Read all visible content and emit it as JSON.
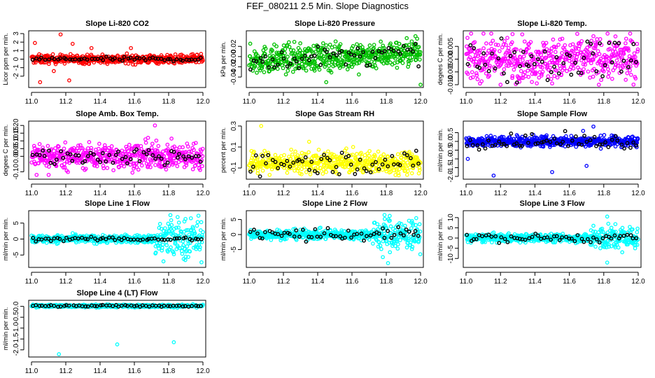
{
  "title": "FEF_080211  2.5 Min. Slope Diagnostics",
  "chart_data": [
    {
      "type": "scatter",
      "title": "Slope Li-820 CO2",
      "ylabel": "Licor ppm per min.",
      "color": "#ff0000",
      "xlim": [
        11.0,
        12.0
      ],
      "xticks": [
        11.0,
        11.2,
        11.4,
        11.6,
        11.8,
        12.0
      ],
      "xtick_labels": [
        "11.0",
        "11.2",
        "11.4",
        "11.6",
        "11.8",
        "12.0"
      ],
      "ylim": [
        -3.0,
        3.0
      ],
      "yticks": [
        -2,
        -1,
        0,
        1,
        2,
        3
      ],
      "ytick_labels": [
        "-2",
        "-1",
        "0",
        "1",
        "2",
        "3"
      ],
      "base": 0.0,
      "spread": 0.25,
      "black_spread": 0.12,
      "outliers": [
        [
          11.17,
          2.9
        ],
        [
          11.05,
          -2.7
        ],
        [
          11.22,
          -2.5
        ],
        [
          11.24,
          1.8
        ],
        [
          11.02,
          1.9
        ],
        [
          11.58,
          1.3
        ],
        [
          11.13,
          -1.4
        ],
        [
          11.35,
          1.3
        ]
      ]
    },
    {
      "type": "scatter",
      "title": "Slope Li-820 Pressure",
      "ylabel": "kPa per min.",
      "color": "#00c000",
      "xlim": [
        11.0,
        12.0
      ],
      "xticks": [
        11.0,
        11.2,
        11.4,
        11.6,
        11.8,
        12.0
      ],
      "xtick_labels": [
        "11.0",
        "11.2",
        "11.4",
        "11.6",
        "11.8",
        "12.0"
      ],
      "ylim": [
        -0.055,
        0.045
      ],
      "yticks": [
        -0.04,
        -0.02,
        0.0,
        0.02
      ],
      "ytick_labels": [
        "-0.04",
        "-0.02",
        "0.00",
        "0.02"
      ],
      "base": 0.0,
      "spread": 0.013,
      "trend": 0.015,
      "black_spread": 0.01,
      "outliers": [
        [
          11.45,
          -0.05
        ],
        [
          12.0,
          -0.055
        ],
        [
          11.64,
          -0.035
        ],
        [
          11.97,
          0.04
        ],
        [
          11.98,
          0.035
        ]
      ]
    },
    {
      "type": "scatter",
      "title": "Slope Li-820 Temp.",
      "ylabel": "degees C per min.",
      "color": "#ff00ff",
      "xlim": [
        11.0,
        12.0
      ],
      "xticks": [
        11.0,
        11.2,
        11.4,
        11.6,
        11.8,
        12.0
      ],
      "xtick_labels": [
        "11.0",
        "11.2",
        "11.4",
        "11.6",
        "11.8",
        "12.0"
      ],
      "ylim": [
        -0.01,
        0.01
      ],
      "yticks": [
        -0.01,
        -0.005,
        0.0,
        0.005
      ],
      "ytick_labels": [
        "-0.010",
        "-0.005",
        "0.000",
        "0.005"
      ],
      "base": 0.0,
      "spread": 0.004,
      "black_spread": 0.004,
      "outliers": [
        [
          11.27,
          0.0098
        ],
        [
          11.5,
          -0.0095
        ],
        [
          11.74,
          0.009
        ],
        [
          11.93,
          0.008
        ]
      ]
    },
    {
      "type": "scatter",
      "title": "Slope Amb. Box Temp.",
      "ylabel": "degees C per min.",
      "color": "#ff00ff",
      "xlim": [
        11.0,
        12.0
      ],
      "xticks": [
        11.0,
        11.2,
        11.4,
        11.6,
        11.8,
        12.0
      ],
      "xtick_labels": [
        "11.0",
        "11.2",
        "11.4",
        "11.6",
        "11.8",
        "12.0"
      ],
      "ylim": [
        -0.13,
        0.21
      ],
      "yticks": [
        -0.1,
        0.0,
        0.05,
        0.1,
        0.15,
        0.2
      ],
      "ytick_labels": [
        "-0.10",
        "0.00",
        "0.05",
        "0.10",
        "0.15",
        "0.20"
      ],
      "base": 0.0,
      "spread": 0.04,
      "black_spread": 0.03,
      "outliers": [
        [
          11.72,
          0.2
        ],
        [
          11.03,
          -0.12
        ],
        [
          11.1,
          -0.12
        ],
        [
          11.68,
          0.12
        ]
      ]
    },
    {
      "type": "scatter",
      "title": "Slope Gas Stream RH",
      "ylabel": "percent per min.",
      "color": "#ffff00",
      "xlim": [
        11.0,
        12.0
      ],
      "xticks": [
        11.0,
        11.2,
        11.4,
        11.6,
        11.8,
        12.0
      ],
      "xtick_labels": [
        "11.0",
        "11.2",
        "11.4",
        "11.6",
        "11.8",
        "12.0"
      ],
      "ylim": [
        -0.18,
        0.32
      ],
      "yticks": [
        -0.1,
        0.1,
        0.3
      ],
      "ytick_labels": [
        "-0.1",
        "0.1",
        "0.3"
      ],
      "base": -0.05,
      "spread": 0.05,
      "black_spread": 0.05,
      "outliers": [
        [
          11.07,
          0.3
        ],
        [
          11.35,
          0.15
        ],
        [
          11.05,
          -0.15
        ],
        [
          11.95,
          -0.15
        ]
      ]
    },
    {
      "type": "scatter",
      "title": "Slope Sample Flow",
      "ylabel": "ml/min per min.",
      "color": "#0000ff",
      "xlim": [
        11.0,
        12.0
      ],
      "xticks": [
        11.0,
        11.2,
        11.4,
        11.6,
        11.8,
        12.0
      ],
      "xtick_labels": [
        "11.0",
        "11.2",
        "11.4",
        "11.6",
        "11.8",
        "12.0"
      ],
      "ylim": [
        -2.0,
        1.0
      ],
      "yticks": [
        -2.0,
        -1.5,
        -1.0,
        -0.5,
        0.0,
        0.5
      ],
      "ytick_labels": [
        "-2.0",
        "-1.5",
        "-1.0",
        "-0.5",
        "0.0",
        "0.5"
      ],
      "base": 0.0,
      "spread": 0.15,
      "black_spread": 0.2,
      "outliers": [
        [
          11.01,
          -1.0
        ],
        [
          11.16,
          -1.95
        ],
        [
          11.5,
          -1.75
        ],
        [
          11.7,
          -1.4
        ],
        [
          11.74,
          0.85
        ],
        [
          11.68,
          0.6
        ]
      ]
    },
    {
      "type": "scatter",
      "title": "Slope Line 1 Flow",
      "ylabel": "ml/min per min.",
      "color": "#00ffff",
      "xlim": [
        11.0,
        12.0
      ],
      "xticks": [
        11.0,
        11.2,
        11.4,
        11.6,
        11.8,
        12.0
      ],
      "xtick_labels": [
        "11.0",
        "11.2",
        "11.4",
        "11.6",
        "11.8",
        "12.0"
      ],
      "ylim": [
        -8.0,
        8.0
      ],
      "yticks": [
        -5,
        0,
        5
      ],
      "ytick_labels": [
        "-5",
        "0",
        "5"
      ],
      "base": 0.0,
      "spread": 0.6,
      "late_spread": 3.2,
      "black_spread": 0.3,
      "outliers": [
        [
          11.81,
          7.5
        ],
        [
          11.77,
          -7.0
        ],
        [
          11.9,
          -5.5
        ],
        [
          11.93,
          6.5
        ]
      ]
    },
    {
      "type": "scatter",
      "title": "Slope Line 2 Flow",
      "ylabel": "ml/min per min.",
      "color": "#00ffff",
      "xlim": [
        11.0,
        12.0
      ],
      "xticks": [
        11.0,
        11.2,
        11.4,
        11.6,
        11.8,
        12.0
      ],
      "xtick_labels": [
        "11.0",
        "11.2",
        "11.4",
        "11.6",
        "11.8",
        "12.0"
      ],
      "ylim": [
        -10.0,
        7.0
      ],
      "yticks": [
        -5,
        0,
        5
      ],
      "ytick_labels": [
        "-5",
        "0",
        "5"
      ],
      "base": 0.0,
      "spread": 0.8,
      "late_spread": 2.5,
      "black_spread": 1.2,
      "outliers": [
        [
          11.81,
          -9.5
        ],
        [
          11.79,
          6.5
        ],
        [
          11.82,
          6.2
        ],
        [
          11.78,
          -7.5
        ],
        [
          11.95,
          4.5
        ]
      ]
    },
    {
      "type": "scatter",
      "title": "Slope Line 3 Flow",
      "ylabel": "ml/min per min.",
      "color": "#00ffff",
      "xlim": [
        11.0,
        12.0
      ],
      "xticks": [
        11.0,
        11.2,
        11.4,
        11.6,
        11.8,
        12.0
      ],
      "xtick_labels": [
        "11.0",
        "11.2",
        "11.4",
        "11.6",
        "11.8",
        "12.0"
      ],
      "ylim": [
        -13.0,
        12.0
      ],
      "yticks": [
        -10,
        -5,
        0,
        5,
        10
      ],
      "ytick_labels": [
        "-10",
        "-5",
        "0",
        "5",
        "10"
      ],
      "base": 0.0,
      "spread": 1.0,
      "late_spread": 3.0,
      "black_spread": 1.0,
      "outliers": [
        [
          11.82,
          10.5
        ],
        [
          11.82,
          -12.0
        ],
        [
          11.78,
          -5.0
        ],
        [
          11.74,
          6.0
        ]
      ]
    },
    {
      "type": "scatter",
      "title": "Slope Line 4 (LT) Flow",
      "ylabel": "ml/min per min.",
      "color": "#00ffff",
      "xlim": [
        11.0,
        12.0
      ],
      "xticks": [
        11.0,
        11.2,
        11.4,
        11.6,
        11.8,
        12.0
      ],
      "xtick_labels": [
        "11.0",
        "11.2",
        "11.4",
        "11.6",
        "11.8",
        "12.0"
      ],
      "ylim": [
        -2.2,
        0.15
      ],
      "yticks": [
        -2.0,
        -1.5,
        -1.0,
        -0.5,
        0.0
      ],
      "ytick_labels": [
        "-2.0",
        "-1.5",
        "-1.0",
        "-0.5",
        "0.0"
      ],
      "base": 0.02,
      "spread": 0.03,
      "black_spread": 0.02,
      "outliers": [
        [
          11.16,
          -2.2
        ],
        [
          11.5,
          -1.75
        ],
        [
          11.83,
          -1.65
        ]
      ]
    }
  ]
}
